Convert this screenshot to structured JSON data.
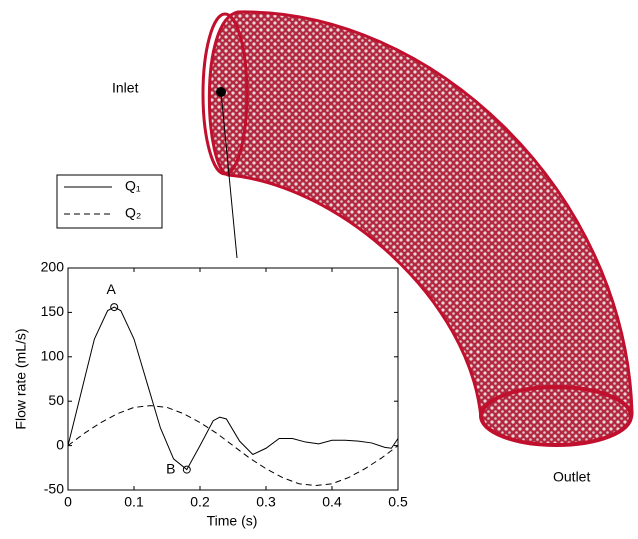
{
  "figure_labels": {
    "inlet": "Inlet",
    "outlet": "Outlet"
  },
  "chart_data": {
    "type": "line",
    "xlabel": "Time (s)",
    "ylabel": "Flow rate (mL/s)",
    "xlim": [
      0,
      0.5
    ],
    "ylim": [
      -50,
      200
    ],
    "xticks": [
      0,
      0.1,
      0.2,
      0.3,
      0.4,
      0.5
    ],
    "yticks": [
      -50,
      0,
      50,
      100,
      150,
      200
    ],
    "grid": false,
    "legend": "upper left",
    "series": [
      {
        "name": "Q₁",
        "color": "#000000",
        "dash": "solid",
        "x": [
          0,
          0.02,
          0.04,
          0.06,
          0.07,
          0.08,
          0.1,
          0.12,
          0.14,
          0.16,
          0.18,
          0.2,
          0.22,
          0.23,
          0.24,
          0.26,
          0.28,
          0.3,
          0.32,
          0.34,
          0.36,
          0.38,
          0.4,
          0.42,
          0.44,
          0.46,
          0.48,
          0.49,
          0.5
        ],
        "values": [
          0,
          60,
          120,
          152,
          156,
          152,
          120,
          70,
          20,
          -15,
          -27,
          0,
          28,
          32,
          30,
          5,
          -10,
          -3,
          8,
          8,
          4,
          2,
          6,
          6,
          5,
          3,
          -2,
          -3,
          8
        ]
      },
      {
        "name": "Q₂",
        "color": "#000000",
        "dash": "dashed",
        "x": [
          0,
          0.025,
          0.05,
          0.075,
          0.1,
          0.125,
          0.15,
          0.175,
          0.2,
          0.225,
          0.25,
          0.275,
          0.3,
          0.325,
          0.35,
          0.375,
          0.4,
          0.425,
          0.45,
          0.475,
          0.5
        ],
        "values": [
          0,
          14,
          26,
          36,
          43,
          45,
          43,
          36,
          26,
          14,
          0,
          -14,
          -26,
          -36,
          -43,
          -45,
          -43,
          -36,
          -26,
          -14,
          0
        ]
      }
    ],
    "annotations": [
      {
        "text": "A",
        "x": 0.07,
        "y": 156
      },
      {
        "text": "B",
        "x": 0.18,
        "y": -27
      }
    ]
  }
}
